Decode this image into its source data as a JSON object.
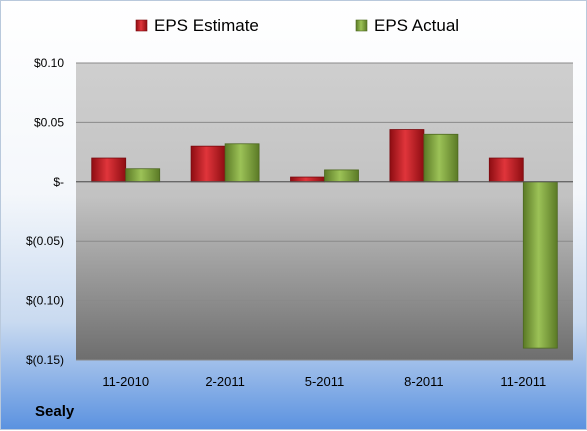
{
  "company": "Sealy",
  "chart_data": {
    "type": "bar",
    "categories": [
      "11-2010",
      "2-2011",
      "5-2011",
      "8-2011",
      "11-2011"
    ],
    "series": [
      {
        "name": "EPS Estimate",
        "color": "#c0141c",
        "values": [
          0.02,
          0.03,
          0.004,
          0.044,
          0.02
        ]
      },
      {
        "name": "EPS Actual",
        "color": "#7a9e3a",
        "values": [
          0.011,
          0.032,
          0.01,
          0.04,
          -0.14
        ]
      }
    ],
    "ylim": [
      -0.15,
      0.1
    ],
    "yticks": [
      0.1,
      0.05,
      0,
      -0.05,
      -0.1,
      -0.15
    ],
    "ytick_labels": [
      "$0.10",
      "$0.05",
      "$-",
      "$(0.05)",
      "$(0.10)",
      "$(0.15)"
    ],
    "grid": true,
    "legend_position": "top-center"
  }
}
